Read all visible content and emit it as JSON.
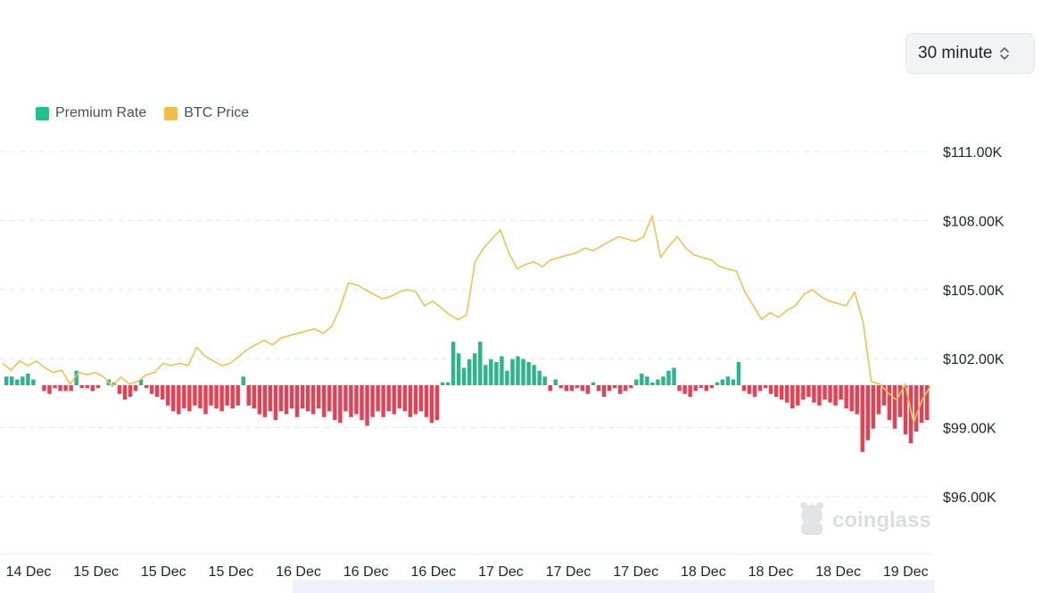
{
  "controls": {
    "interval": {
      "value": "30 minute",
      "icon": "chevron-up-down-icon"
    }
  },
  "legend": [
    {
      "label": "Premium Rate",
      "color": "#1fc18e"
    },
    {
      "label": "BTC Price",
      "color": "#f0bd45"
    }
  ],
  "watermark": {
    "text": "coinglass",
    "icon": "coinglass-mascot-icon"
  },
  "colors": {
    "positive": "#2bb58c",
    "negative": "#e83f52",
    "price_line": "#f0c14f",
    "grid": "#e6e8ec"
  },
  "chart_data": {
    "type": "bar+line",
    "y_axis_right": {
      "label": "BTC Price",
      "ticks": [
        "$111.00K",
        "$108.00K",
        "$105.00K",
        "$102.00K",
        "$99.00K",
        "$96.00K"
      ],
      "tick_values": [
        111000,
        108000,
        105000,
        102000,
        99000,
        96000
      ],
      "range": [
        94500,
        111000
      ]
    },
    "x_axis": {
      "tick_labels": [
        "14 Dec",
        "15 Dec",
        "15 Dec",
        "15 Dec",
        "16 Dec",
        "16 Dec",
        "16 Dec",
        "17 Dec",
        "17 Dec",
        "17 Dec",
        "18 Dec",
        "18 Dec",
        "18 Dec",
        "19 Dec"
      ],
      "range_days": [
        0,
        5.5
      ],
      "tick_positions_days": [
        0,
        0.4,
        0.8,
        1.2,
        1.6,
        2.0,
        2.4,
        2.8,
        3.2,
        3.6,
        4.0,
        4.4,
        4.8,
        5.2
      ]
    },
    "grid": true,
    "legend_position": "top-left",
    "series": [
      {
        "name": "BTC Price",
        "type": "line",
        "points": [
          [
            0.0,
            101800
          ],
          [
            0.05,
            101500
          ],
          [
            0.1,
            101900
          ],
          [
            0.15,
            101700
          ],
          [
            0.2,
            101900
          ],
          [
            0.25,
            101600
          ],
          [
            0.3,
            101400
          ],
          [
            0.35,
            101500
          ],
          [
            0.4,
            100900
          ],
          [
            0.45,
            101400
          ],
          [
            0.5,
            101300
          ],
          [
            0.55,
            101400
          ],
          [
            0.6,
            101200
          ],
          [
            0.65,
            100800
          ],
          [
            0.7,
            101200
          ],
          [
            0.75,
            100900
          ],
          [
            0.8,
            101000
          ],
          [
            0.85,
            101300
          ],
          [
            0.9,
            101400
          ],
          [
            0.95,
            101800
          ],
          [
            1.0,
            101700
          ],
          [
            1.05,
            101800
          ],
          [
            1.1,
            101700
          ],
          [
            1.15,
            102500
          ],
          [
            1.2,
            102100
          ],
          [
            1.25,
            101900
          ],
          [
            1.3,
            101700
          ],
          [
            1.35,
            101800
          ],
          [
            1.4,
            102100
          ],
          [
            1.45,
            102400
          ],
          [
            1.5,
            102600
          ],
          [
            1.55,
            102800
          ],
          [
            1.6,
            102600
          ],
          [
            1.65,
            102900
          ],
          [
            1.7,
            103000
          ],
          [
            1.75,
            103100
          ],
          [
            1.8,
            103200
          ],
          [
            1.85,
            103300
          ],
          [
            1.9,
            103100
          ],
          [
            1.95,
            103400
          ],
          [
            2.0,
            104200
          ],
          [
            2.05,
            105300
          ],
          [
            2.1,
            105200
          ],
          [
            2.15,
            105000
          ],
          [
            2.2,
            104800
          ],
          [
            2.25,
            104600
          ],
          [
            2.3,
            104700
          ],
          [
            2.35,
            104900
          ],
          [
            2.4,
            105000
          ],
          [
            2.45,
            104900
          ],
          [
            2.5,
            104300
          ],
          [
            2.55,
            104500
          ],
          [
            2.6,
            104200
          ],
          [
            2.65,
            103900
          ],
          [
            2.7,
            103700
          ],
          [
            2.75,
            103900
          ],
          [
            2.8,
            106200
          ],
          [
            2.85,
            106800
          ],
          [
            2.9,
            107200
          ],
          [
            2.95,
            107600
          ],
          [
            3.0,
            106600
          ],
          [
            3.05,
            105900
          ],
          [
            3.1,
            106100
          ],
          [
            3.15,
            106200
          ],
          [
            3.2,
            106000
          ],
          [
            3.25,
            106300
          ],
          [
            3.3,
            106400
          ],
          [
            3.35,
            106500
          ],
          [
            3.4,
            106600
          ],
          [
            3.45,
            106800
          ],
          [
            3.5,
            106700
          ],
          [
            3.55,
            106900
          ],
          [
            3.6,
            107100
          ],
          [
            3.65,
            107300
          ],
          [
            3.7,
            107200
          ],
          [
            3.75,
            107100
          ],
          [
            3.8,
            107300
          ],
          [
            3.85,
            108200
          ],
          [
            3.9,
            106400
          ],
          [
            3.95,
            106900
          ],
          [
            4.0,
            107300
          ],
          [
            4.05,
            106800
          ],
          [
            4.1,
            106500
          ],
          [
            4.15,
            106400
          ],
          [
            4.2,
            106300
          ],
          [
            4.25,
            106000
          ],
          [
            4.3,
            105900
          ],
          [
            4.35,
            105800
          ],
          [
            4.4,
            104900
          ],
          [
            4.45,
            104300
          ],
          [
            4.5,
            103700
          ],
          [
            4.55,
            104000
          ],
          [
            4.6,
            103800
          ],
          [
            4.65,
            104100
          ],
          [
            4.7,
            104300
          ],
          [
            4.75,
            104800
          ],
          [
            4.8,
            105000
          ],
          [
            4.85,
            104700
          ],
          [
            4.9,
            104500
          ],
          [
            4.95,
            104400
          ],
          [
            5.0,
            104300
          ],
          [
            5.05,
            104900
          ],
          [
            5.1,
            103600
          ],
          [
            5.15,
            101000
          ],
          [
            5.2,
            100900
          ],
          [
            5.25,
            100500
          ],
          [
            5.3,
            100200
          ],
          [
            5.35,
            100900
          ],
          [
            5.4,
            99200
          ],
          [
            5.45,
            100200
          ],
          [
            5.5,
            100800
          ]
        ]
      },
      {
        "name": "Premium Rate",
        "type": "bar",
        "values": [
          3,
          3,
          2,
          3,
          4,
          2,
          0,
          -2,
          -3,
          -1,
          -2,
          -2,
          -2,
          5,
          -1,
          -1,
          -2,
          -1,
          0,
          2,
          1,
          -3,
          -5,
          -4,
          -2,
          2,
          -1,
          -3,
          -4,
          -5,
          -7,
          -9,
          -10,
          -8,
          -9,
          -7,
          -8,
          -10,
          -7,
          -8,
          -9,
          -7,
          -8,
          -7,
          3,
          -7,
          -8,
          -10,
          -11,
          -9,
          -12,
          -9,
          -10,
          -8,
          -11,
          -8,
          -9,
          -10,
          -8,
          -11,
          -9,
          -12,
          -13,
          -9,
          -11,
          -10,
          -12,
          -14,
          -11,
          -9,
          -11,
          -9,
          -10,
          -8,
          -9,
          -11,
          -10,
          -9,
          -11,
          -13,
          -12,
          1,
          1,
          15,
          11,
          6,
          9,
          11,
          15,
          7,
          9,
          8,
          10,
          5,
          9,
          10,
          9,
          8,
          7,
          5,
          3,
          -2,
          2,
          -1,
          -2,
          -2,
          -1,
          -2,
          -3,
          1,
          -2,
          -4,
          -2,
          -1,
          -3,
          -2,
          -1,
          2,
          4,
          3,
          1,
          2,
          3,
          5,
          6,
          -2,
          -3,
          -4,
          -2,
          -1,
          -2,
          -1,
          1,
          2,
          3,
          2,
          8,
          -2,
          -3,
          -4,
          -2,
          -1,
          -3,
          -4,
          -5,
          -6,
          -8,
          -7,
          -5,
          -4,
          -6,
          -7,
          -5,
          -6,
          -7,
          -5,
          -8,
          -9,
          -10,
          -23,
          -19,
          -15,
          -10,
          -7,
          -12,
          -15,
          -11,
          -17,
          -20,
          -16,
          -13,
          -12
        ],
        "bar_scale_note": "relative"
      }
    ]
  }
}
